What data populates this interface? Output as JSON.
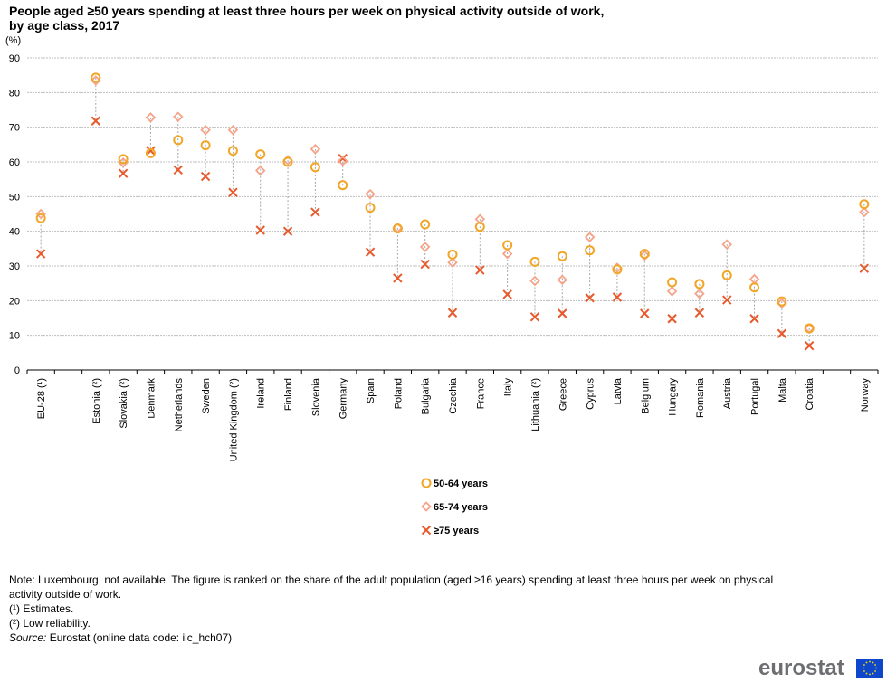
{
  "chart_data": {
    "type": "scatter",
    "title_line1": "People aged ≥50 years spending at least three hours per week on physical  activity outside of work,",
    "title_line2": "by age class, 2017",
    "ylabel": "(%)",
    "ylim": [
      0,
      90
    ],
    "yticks": [
      "0",
      "10",
      "20",
      "30",
      "40",
      "50",
      "60",
      "70",
      "80",
      "90"
    ],
    "grid": true,
    "legend_position": "bottom-center",
    "categories": [
      "EU-28 (¹)",
      "Estonia (²)",
      "Slovakia (²)",
      "Denmark",
      "Netherlands",
      "Sweden",
      "United Kingdom (²)",
      "Ireland",
      "Finland",
      "Slovenia",
      "Germany",
      "Spain",
      "Poland",
      "Bulgaria",
      "Czechia",
      "France",
      "Italy",
      "Lithuania (²)",
      "Greece",
      "Cyprus",
      "Latvia",
      "Belgium",
      "Hungary",
      "Romania",
      "Austria",
      "Portugal",
      "Malta",
      "Croatia",
      "Norway"
    ],
    "series": [
      {
        "name": "50-64 years",
        "color": "#f2a626",
        "marker": "circle",
        "values": [
          43.8,
          84.3,
          60.8,
          62.5,
          66.3,
          64.8,
          63.2,
          62.2,
          60.0,
          58.5,
          53.3,
          46.8,
          40.8,
          42.0,
          33.3,
          41.3,
          36.0,
          31.2,
          32.8,
          34.5,
          29.0,
          33.5,
          25.3,
          24.8,
          27.3,
          23.8,
          19.8,
          12.0,
          47.8
        ]
      },
      {
        "name": "65-74 years",
        "color": "#f5a48a",
        "marker": "diamond",
        "values": [
          45.0,
          83.5,
          59.8,
          72.8,
          73.0,
          69.2,
          69.2,
          57.5,
          60.5,
          63.7,
          60.3,
          50.7,
          41.0,
          35.5,
          31.0,
          43.5,
          33.5,
          25.7,
          26.0,
          38.3,
          29.5,
          33.0,
          22.7,
          22.0,
          36.2,
          26.2,
          19.2,
          12.0,
          45.5
        ]
      },
      {
        "name": "≥75 years",
        "color": "#e85a2b",
        "marker": "cross",
        "values": [
          33.5,
          71.8,
          56.7,
          63.2,
          57.7,
          55.8,
          51.2,
          40.3,
          40.0,
          45.5,
          61.0,
          34.0,
          26.5,
          30.5,
          16.5,
          28.8,
          21.8,
          15.3,
          16.3,
          20.8,
          21.0,
          16.3,
          14.8,
          16.5,
          20.2,
          14.8,
          10.5,
          7.0,
          29.3
        ]
      }
    ]
  },
  "notes": {
    "note_line1": "Note: Luxembourg, not available. The figure is ranked on the share of the adult population (aged ≥16 years) spending at least three hours per week on physical",
    "note_line2": "activity outside of work.",
    "footnote1": "(¹) Estimates.",
    "footnote2": "(²) Low reliability.",
    "source_label": "Source:",
    "source_text": " Eurostat (online data code: ilc_hch07)"
  },
  "logo": {
    "text": "eurostat",
    "flag_color": "#0e47cb",
    "star_color": "#ffdd00"
  }
}
